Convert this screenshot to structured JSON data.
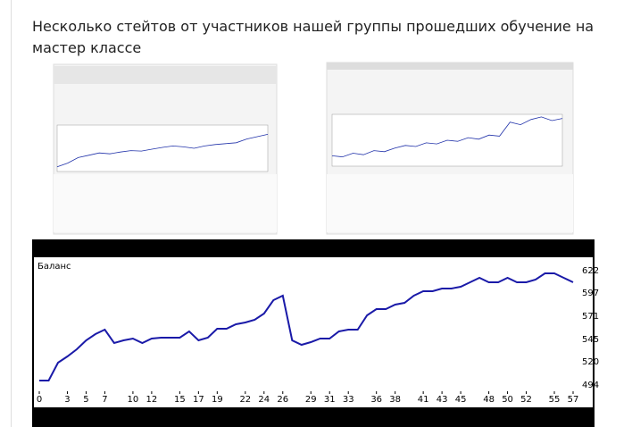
{
  "post": {
    "text": "Несколько стейтов от участников нашей группы прошедших обучение на мастер классе"
  },
  "chart_data": [
    {
      "type": "line",
      "color": "#2233aa",
      "ylim": [
        0,
        100
      ],
      "values": [
        10,
        18,
        30,
        35,
        40,
        38,
        42,
        45,
        44,
        48,
        52,
        55,
        53,
        50,
        55,
        58,
        60,
        62,
        70,
        75,
        80
      ]
    },
    {
      "type": "line",
      "color": "#2233aa",
      "ylim": [
        0,
        100
      ],
      "values": [
        20,
        18,
        25,
        22,
        30,
        28,
        35,
        40,
        38,
        45,
        43,
        50,
        48,
        55,
        52,
        60,
        58,
        85,
        80,
        90,
        95,
        88,
        92
      ]
    },
    {
      "type": "line",
      "title": "Баланс",
      "color": "#1a1aa8",
      "x": [
        0,
        1,
        2,
        3,
        4,
        5,
        6,
        7,
        8,
        9,
        10,
        11,
        12,
        13,
        14,
        15,
        16,
        17,
        18,
        19,
        20,
        21,
        22,
        23,
        24,
        25,
        26,
        27,
        28,
        29,
        30,
        31,
        32,
        33,
        34,
        35,
        36,
        37,
        38,
        39,
        40,
        41,
        42,
        43,
        44,
        45,
        46,
        47,
        48,
        49,
        50,
        51,
        52,
        53,
        54,
        55,
        56,
        57
      ],
      "values": [
        499,
        499,
        519,
        526,
        534,
        544,
        551,
        556,
        541,
        544,
        546,
        541,
        546,
        547,
        547,
        547,
        554,
        544,
        547,
        557,
        557,
        562,
        564,
        567,
        574,
        589,
        594,
        544,
        539,
        542,
        546,
        546,
        554,
        556,
        556,
        572,
        579,
        579,
        584,
        586,
        594,
        599,
        599,
        602,
        602,
        604,
        609,
        614,
        609,
        609,
        614,
        609,
        609,
        612,
        619,
        619,
        614,
        609
      ],
      "xlim": [
        0,
        57
      ],
      "ylim": [
        487,
        637
      ],
      "xticks": [
        0,
        3,
        5,
        7,
        10,
        12,
        15,
        17,
        19,
        22,
        24,
        26,
        29,
        31,
        33,
        36,
        38,
        41,
        43,
        45,
        48,
        50,
        52,
        55,
        57
      ],
      "yticks": [
        494,
        520,
        545,
        571,
        597,
        622
      ]
    }
  ]
}
